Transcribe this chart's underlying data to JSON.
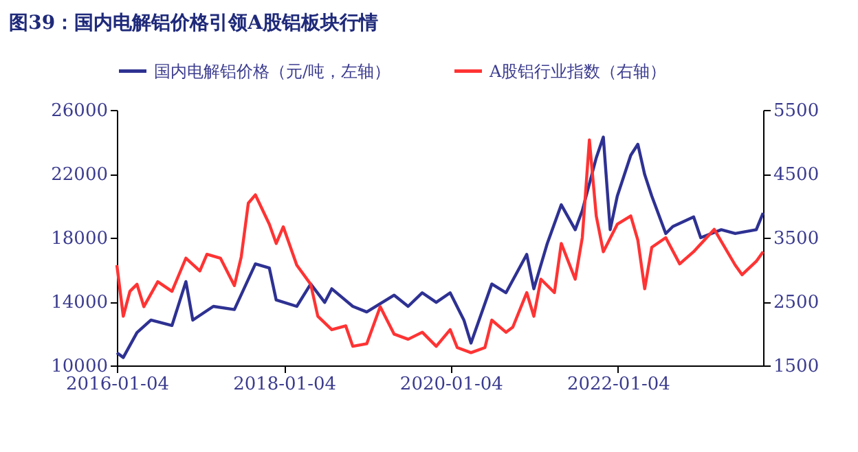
{
  "chart_data": {
    "type": "line",
    "title": "图39：国内电解铝价格引领A股铝板块行情",
    "xlim": [
      "2016-01-04",
      "2023-10"
    ],
    "xticks": [
      "2016-01-04",
      "2018-01-04",
      "2020-01-04",
      "2022-01-04"
    ],
    "ylim": [
      10000,
      26000
    ],
    "yticks": [
      10000,
      14000,
      18000,
      22000,
      26000
    ],
    "y2lim": [
      1500,
      5500
    ],
    "y2ticks": [
      1500,
      2500,
      3500,
      4500,
      5500
    ],
    "grid": false,
    "legend": "top",
    "series": [
      {
        "name": "国内电解铝价格（元/吨，左轴）",
        "color": "#2e3192",
        "x": [
          "2016-01-04",
          "2016-02",
          "2016-04",
          "2016-06",
          "2016-09",
          "2016-11",
          "2016-12",
          "2017-03",
          "2017-06",
          "2017-09",
          "2017-11",
          "2017-12",
          "2018-03",
          "2018-05",
          "2018-07",
          "2018-08",
          "2018-11",
          "2019-01",
          "2019-05",
          "2019-07",
          "2019-09",
          "2019-11",
          "2020-01",
          "2020-03",
          "2020-04",
          "2020-07",
          "2020-09",
          "2020-12",
          "2021-01",
          "2021-03",
          "2021-05",
          "2021-07",
          "2021-08",
          "2021-10",
          "2021-11",
          "2021-12",
          "2022-01",
          "2022-03",
          "2022-04",
          "2022-05",
          "2022-06",
          "2022-08",
          "2022-09",
          "2022-12",
          "2023-01",
          "2023-04",
          "2023-06",
          "2023-09",
          "2023-10"
        ],
        "values": [
          10800,
          10500,
          12060,
          12840,
          12500,
          15250,
          12840,
          13700,
          13500,
          16360,
          16100,
          14100,
          13700,
          15100,
          13950,
          14800,
          13700,
          13350,
          14400,
          13700,
          14550,
          13950,
          14550,
          12840,
          11400,
          15100,
          14550,
          16950,
          14800,
          17650,
          20060,
          18500,
          19700,
          23000,
          24300,
          18500,
          20600,
          23160,
          23850,
          21950,
          20600,
          18260,
          18700,
          19300,
          18000,
          18500,
          18260,
          18500,
          19550
        ]
      },
      {
        "name": "A股铝行业指数（右轴）",
        "color": "#ff3333",
        "axis": "y2",
        "x": [
          "2016-01-04",
          "2016-02",
          "2016-03",
          "2016-04",
          "2016-05",
          "2016-07",
          "2016-09",
          "2016-11",
          "2017-01",
          "2017-02",
          "2017-04",
          "2017-06",
          "2017-07",
          "2017-08",
          "2017-09",
          "2017-11",
          "2017-12",
          "2018-01",
          "2018-03",
          "2018-05",
          "2018-06",
          "2018-08",
          "2018-10",
          "2018-11",
          "2019-01",
          "2019-03",
          "2019-05",
          "2019-07",
          "2019-09",
          "2019-11",
          "2020-01",
          "2020-02",
          "2020-04",
          "2020-06",
          "2020-07",
          "2020-09",
          "2020-10",
          "2020-12",
          "2021-01",
          "2021-02",
          "2021-04",
          "2021-05",
          "2021-07",
          "2021-08",
          "2021-09",
          "2021-10",
          "2021-11",
          "2022-01",
          "2022-03",
          "2022-04",
          "2022-05",
          "2022-06",
          "2022-08",
          "2022-10",
          "2022-12",
          "2023-03",
          "2023-06",
          "2023-07",
          "2023-09",
          "2023-10"
        ],
        "values": [
          3070,
          2270,
          2660,
          2770,
          2420,
          2810,
          2660,
          3180,
          2980,
          3240,
          3180,
          2750,
          3200,
          4040,
          4170,
          3710,
          3410,
          3670,
          3070,
          2770,
          2270,
          2060,
          2120,
          1800,
          1840,
          2420,
          1990,
          1910,
          2020,
          1800,
          2060,
          1780,
          1700,
          1780,
          2210,
          2020,
          2100,
          2640,
          2270,
          2850,
          2640,
          3410,
          2850,
          3500,
          5030,
          3840,
          3280,
          3710,
          3840,
          3460,
          2700,
          3350,
          3500,
          3090,
          3280,
          3630,
          3070,
          2920,
          3130,
          3280
        ]
      }
    ]
  }
}
